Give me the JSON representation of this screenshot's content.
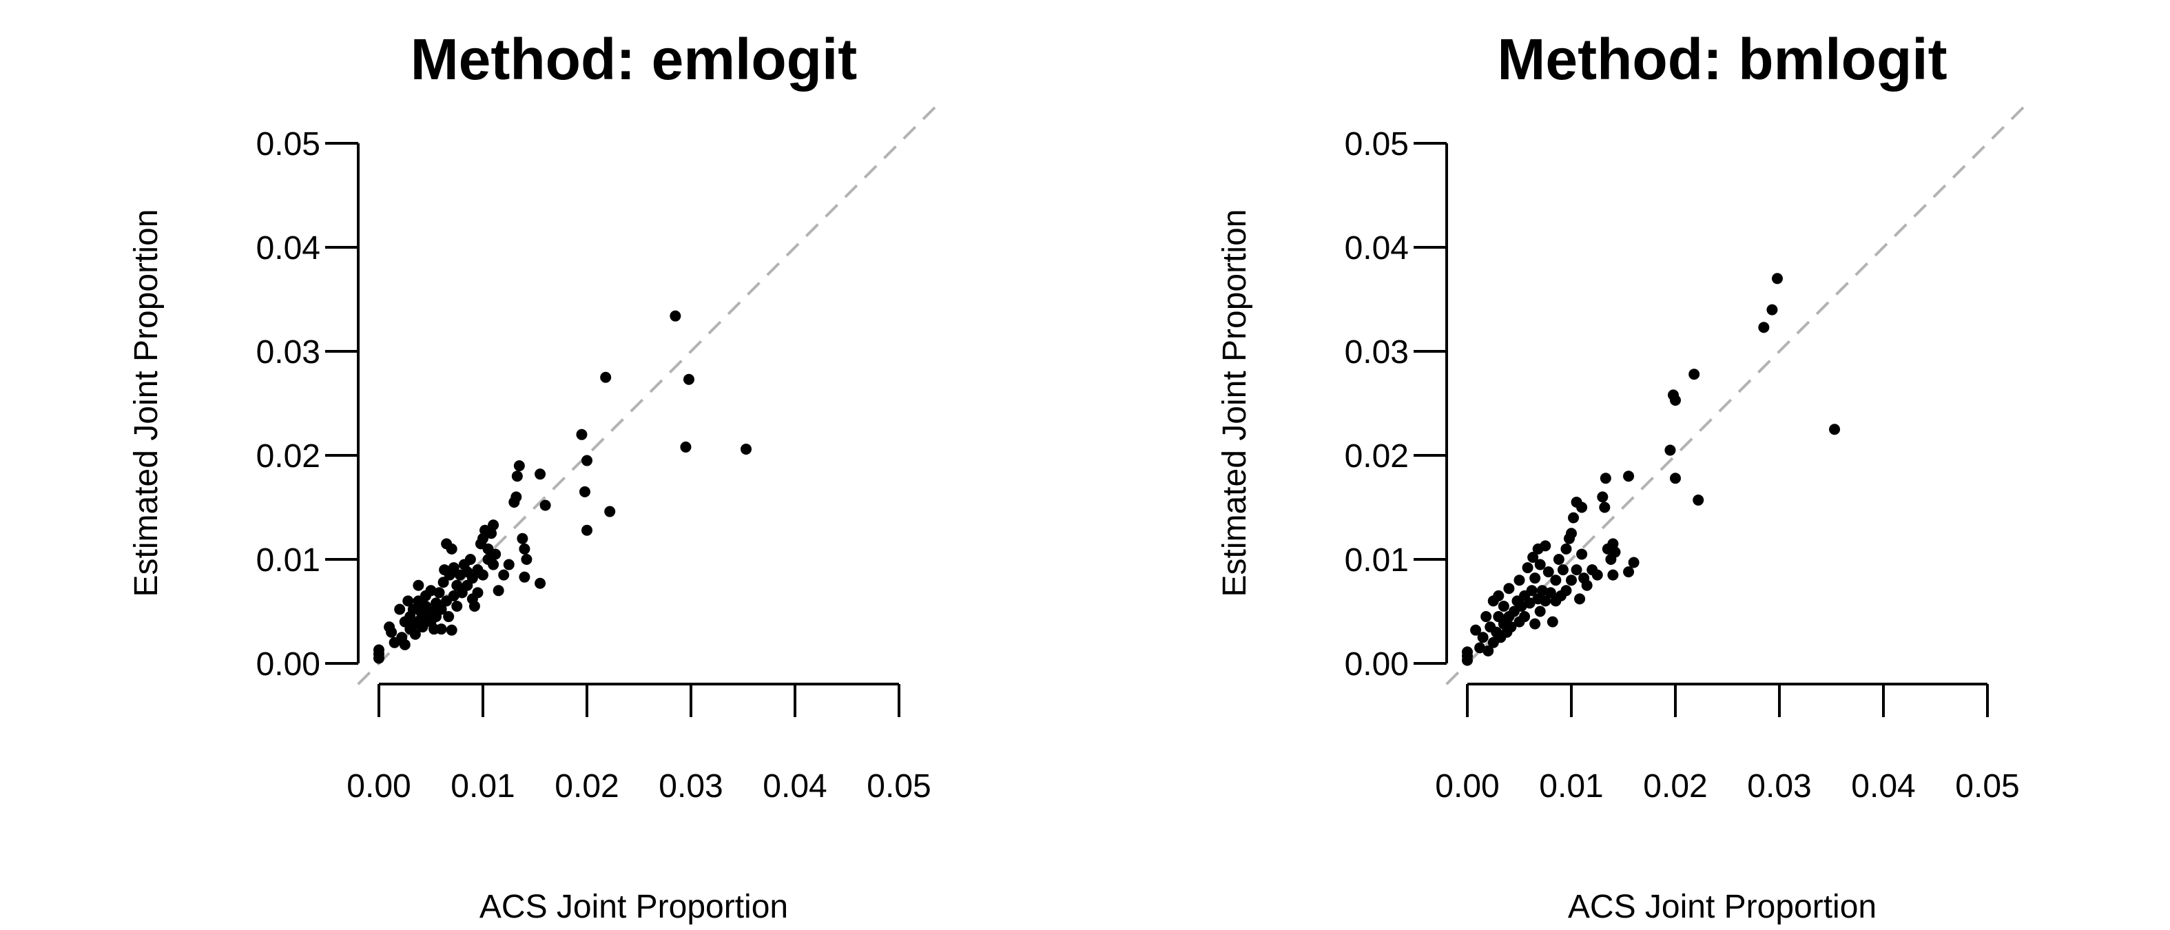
{
  "chart_data": [
    {
      "type": "scatter",
      "title": "Method: emlogit",
      "xlabel": "ACS Joint Proportion",
      "ylabel": "Estimated Joint Proportion",
      "xlim": [
        0,
        0.05
      ],
      "ylim": [
        0,
        0.05
      ],
      "x_ticks": [
        "0.00",
        "0.01",
        "0.02",
        "0.03",
        "0.04",
        "0.05"
      ],
      "y_ticks": [
        "0.00",
        "0.01",
        "0.02",
        "0.03",
        "0.04",
        "0.05"
      ],
      "reference_line": "y = x (dashed gray)",
      "grid": false,
      "points": [
        [
          0.0,
          0.0005
        ],
        [
          0.0,
          0.0009
        ],
        [
          0.0,
          0.0013
        ],
        [
          0.001,
          0.0035
        ],
        [
          0.0012,
          0.003
        ],
        [
          0.0015,
          0.002
        ],
        [
          0.002,
          0.0052
        ],
        [
          0.0022,
          0.0025
        ],
        [
          0.0025,
          0.004
        ],
        [
          0.0025,
          0.0018
        ],
        [
          0.0028,
          0.006
        ],
        [
          0.003,
          0.0033
        ],
        [
          0.003,
          0.0045
        ],
        [
          0.0033,
          0.0052
        ],
        [
          0.0035,
          0.0028
        ],
        [
          0.0035,
          0.0038
        ],
        [
          0.0038,
          0.006
        ],
        [
          0.0038,
          0.0075
        ],
        [
          0.004,
          0.0042
        ],
        [
          0.004,
          0.005
        ],
        [
          0.0042,
          0.0035
        ],
        [
          0.0045,
          0.0055
        ],
        [
          0.0045,
          0.0065
        ],
        [
          0.0048,
          0.0045
        ],
        [
          0.005,
          0.004
        ],
        [
          0.005,
          0.007
        ],
        [
          0.0052,
          0.005
        ],
        [
          0.0053,
          0.0033
        ],
        [
          0.0055,
          0.0058
        ],
        [
          0.0055,
          0.0045
        ],
        [
          0.0058,
          0.0068
        ],
        [
          0.006,
          0.0052
        ],
        [
          0.006,
          0.0033
        ],
        [
          0.0062,
          0.0078
        ],
        [
          0.0063,
          0.009
        ],
        [
          0.0065,
          0.0115
        ],
        [
          0.0065,
          0.006
        ],
        [
          0.0067,
          0.0045
        ],
        [
          0.0068,
          0.0085
        ],
        [
          0.007,
          0.011
        ],
        [
          0.007,
          0.0032
        ],
        [
          0.0072,
          0.0065
        ],
        [
          0.0072,
          0.0092
        ],
        [
          0.0075,
          0.0075
        ],
        [
          0.0075,
          0.0055
        ],
        [
          0.0078,
          0.0085
        ],
        [
          0.008,
          0.0068
        ],
        [
          0.0082,
          0.0095
        ],
        [
          0.0085,
          0.0088
        ],
        [
          0.0085,
          0.0075
        ],
        [
          0.0088,
          0.01
        ],
        [
          0.009,
          0.0062
        ],
        [
          0.009,
          0.0082
        ],
        [
          0.0092,
          0.0055
        ],
        [
          0.0095,
          0.009
        ],
        [
          0.0095,
          0.0068
        ],
        [
          0.0098,
          0.0115
        ],
        [
          0.01,
          0.012
        ],
        [
          0.01,
          0.0085
        ],
        [
          0.0102,
          0.0128
        ],
        [
          0.0105,
          0.011
        ],
        [
          0.0105,
          0.01
        ],
        [
          0.0108,
          0.0125
        ],
        [
          0.011,
          0.0133
        ],
        [
          0.011,
          0.0095
        ],
        [
          0.0112,
          0.0105
        ],
        [
          0.0115,
          0.007
        ],
        [
          0.012,
          0.0085
        ],
        [
          0.0125,
          0.0095
        ],
        [
          0.013,
          0.0155
        ],
        [
          0.0132,
          0.016
        ],
        [
          0.0133,
          0.018
        ],
        [
          0.0135,
          0.019
        ],
        [
          0.0138,
          0.012
        ],
        [
          0.014,
          0.011
        ],
        [
          0.014,
          0.0083
        ],
        [
          0.0142,
          0.01
        ],
        [
          0.0155,
          0.0182
        ],
        [
          0.0155,
          0.0077
        ],
        [
          0.016,
          0.0152
        ],
        [
          0.0195,
          0.022
        ],
        [
          0.0198,
          0.0165
        ],
        [
          0.02,
          0.0195
        ],
        [
          0.02,
          0.0128
        ],
        [
          0.0218,
          0.0275
        ],
        [
          0.0222,
          0.0146
        ],
        [
          0.0285,
          0.0334
        ],
        [
          0.0295,
          0.0208
        ],
        [
          0.0298,
          0.0273
        ],
        [
          0.0353,
          0.0206
        ]
      ]
    },
    {
      "type": "scatter",
      "title": "Method: bmlogit",
      "xlabel": "ACS Joint Proportion",
      "ylabel": "Estimated Joint Proportion",
      "xlim": [
        0,
        0.05
      ],
      "ylim": [
        0,
        0.05
      ],
      "x_ticks": [
        "0.00",
        "0.01",
        "0.02",
        "0.03",
        "0.04",
        "0.05"
      ],
      "y_ticks": [
        "0.00",
        "0.01",
        "0.02",
        "0.03",
        "0.04",
        "0.05"
      ],
      "reference_line": "y = x (dashed gray)",
      "grid": false,
      "points": [
        [
          0.0,
          0.0003
        ],
        [
          0.0,
          0.0007
        ],
        [
          0.0,
          0.0011
        ],
        [
          0.0008,
          0.0032
        ],
        [
          0.0012,
          0.0015
        ],
        [
          0.0015,
          0.0025
        ],
        [
          0.0018,
          0.0045
        ],
        [
          0.002,
          0.0012
        ],
        [
          0.0022,
          0.0035
        ],
        [
          0.0025,
          0.006
        ],
        [
          0.0025,
          0.002
        ],
        [
          0.0028,
          0.003
        ],
        [
          0.003,
          0.0045
        ],
        [
          0.003,
          0.0065
        ],
        [
          0.0032,
          0.0025
        ],
        [
          0.0035,
          0.0038
        ],
        [
          0.0035,
          0.0055
        ],
        [
          0.0038,
          0.003
        ],
        [
          0.004,
          0.0045
        ],
        [
          0.004,
          0.0072
        ],
        [
          0.0042,
          0.0035
        ],
        [
          0.0045,
          0.005
        ],
        [
          0.0048,
          0.006
        ],
        [
          0.005,
          0.004
        ],
        [
          0.005,
          0.008
        ],
        [
          0.0052,
          0.0055
        ],
        [
          0.0055,
          0.0065
        ],
        [
          0.0055,
          0.0045
        ],
        [
          0.0058,
          0.0092
        ],
        [
          0.006,
          0.0058
        ],
        [
          0.0062,
          0.007
        ],
        [
          0.0063,
          0.0102
        ],
        [
          0.0065,
          0.0038
        ],
        [
          0.0065,
          0.0082
        ],
        [
          0.0068,
          0.011
        ],
        [
          0.0068,
          0.0062
        ],
        [
          0.007,
          0.0095
        ],
        [
          0.007,
          0.005
        ],
        [
          0.0072,
          0.007
        ],
        [
          0.0075,
          0.0113
        ],
        [
          0.0075,
          0.006
        ],
        [
          0.0078,
          0.0088
        ],
        [
          0.008,
          0.0068
        ],
        [
          0.0082,
          0.004
        ],
        [
          0.0085,
          0.008
        ],
        [
          0.0085,
          0.006
        ],
        [
          0.0088,
          0.01
        ],
        [
          0.009,
          0.0065
        ],
        [
          0.0092,
          0.009
        ],
        [
          0.0095,
          0.011
        ],
        [
          0.0095,
          0.007
        ],
        [
          0.0098,
          0.012
        ],
        [
          0.01,
          0.0125
        ],
        [
          0.01,
          0.008
        ],
        [
          0.0102,
          0.014
        ],
        [
          0.0105,
          0.0155
        ],
        [
          0.0105,
          0.009
        ],
        [
          0.0108,
          0.0062
        ],
        [
          0.011,
          0.015
        ],
        [
          0.011,
          0.0105
        ],
        [
          0.0112,
          0.0082
        ],
        [
          0.0115,
          0.0075
        ],
        [
          0.012,
          0.009
        ],
        [
          0.0125,
          0.0085
        ],
        [
          0.013,
          0.016
        ],
        [
          0.0132,
          0.015
        ],
        [
          0.0133,
          0.0178
        ],
        [
          0.0135,
          0.011
        ],
        [
          0.0138,
          0.01
        ],
        [
          0.014,
          0.0115
        ],
        [
          0.014,
          0.0085
        ],
        [
          0.0142,
          0.0107
        ],
        [
          0.0155,
          0.018
        ],
        [
          0.0155,
          0.0088
        ],
        [
          0.016,
          0.0097
        ],
        [
          0.0195,
          0.0205
        ],
        [
          0.0198,
          0.0258
        ],
        [
          0.02,
          0.0253
        ],
        [
          0.02,
          0.0178
        ],
        [
          0.0218,
          0.0278
        ],
        [
          0.0222,
          0.0157
        ],
        [
          0.0285,
          0.0323
        ],
        [
          0.0293,
          0.034
        ],
        [
          0.0298,
          0.037
        ],
        [
          0.0353,
          0.0225
        ]
      ]
    }
  ]
}
